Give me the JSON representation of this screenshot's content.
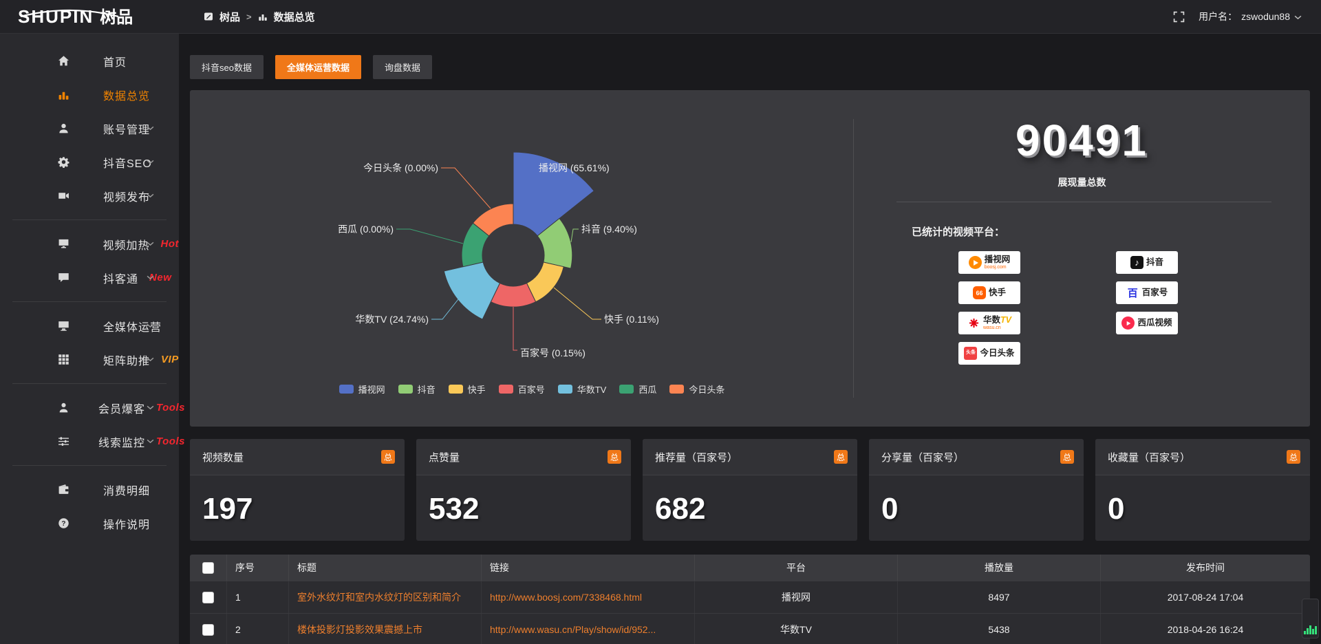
{
  "header": {
    "logo_text_en": "SHUPIN",
    "logo_text_cn": "树品",
    "breadcrumb": {
      "root": "树品",
      "separator": ">",
      "current": "数据总览"
    },
    "username_label": "用户名：",
    "username": "zswodun88"
  },
  "sidebar": {
    "items": [
      {
        "icon": "home-icon",
        "label": "首页"
      },
      {
        "icon": "bar-chart-icon",
        "label": "数据总览",
        "active": true
      },
      {
        "icon": "user-icon",
        "label": "账号管理",
        "chevron": true
      },
      {
        "icon": "gear-icon",
        "label": "抖音SEO",
        "chevron": true
      },
      {
        "icon": "video-publish-icon",
        "label": "视频发布",
        "chevron": true
      },
      {
        "divider": true
      },
      {
        "icon": "screen-icon",
        "label": "视频加热",
        "tag": "Hot",
        "tag_color": "#f4262e",
        "chevron": true
      },
      {
        "icon": "comment-icon",
        "label": "抖客通",
        "tag": "New",
        "tag_color": "#f4262e",
        "chevron": true
      },
      {
        "divider": true
      },
      {
        "icon": "monitor-icon",
        "label": "全媒体运营",
        "chevron": true
      },
      {
        "icon": "grid-icon",
        "label": "矩阵助推",
        "tag": "VIP",
        "tag_color": "#f59b22",
        "chevron": true
      },
      {
        "divider": true
      },
      {
        "icon": "member-icon",
        "label": "会员爆客",
        "tag": "Tools",
        "tag_color": "#f4262e",
        "chevron": true
      },
      {
        "icon": "sliders-icon",
        "label": "线索监控",
        "tag": "Tools",
        "tag_color": "#f4262e",
        "chevron": true
      },
      {
        "divider": true
      },
      {
        "icon": "wallet-icon",
        "label": "消费明细"
      },
      {
        "icon": "help-icon",
        "label": "操作说明"
      }
    ]
  },
  "tabs": [
    {
      "label": "抖音seo数据"
    },
    {
      "label": "全媒体运营数据",
      "active": true
    },
    {
      "label": "询盘数据"
    }
  ],
  "chart_data": {
    "type": "pie",
    "subtype": "rose",
    "donut": true,
    "legend_position": "bottom",
    "series": [
      {
        "name": "播视网",
        "value": 65.61,
        "label": "播视网 (65.61%)",
        "color": "#5470c6"
      },
      {
        "name": "抖音",
        "value": 9.4,
        "label": "抖音 (9.40%)",
        "color": "#91cc75"
      },
      {
        "name": "快手",
        "value": 0.11,
        "label": "快手 (0.11%)",
        "color": "#fac858"
      },
      {
        "name": "百家号",
        "value": 0.15,
        "label": "百家号 (0.15%)",
        "color": "#ee6666"
      },
      {
        "name": "华数TV",
        "value": 24.74,
        "label": "华数TV (24.74%)",
        "color": "#73c0de"
      },
      {
        "name": "西瓜",
        "value": 0.0,
        "label": "西瓜 (0.00%)",
        "color": "#3ba272"
      },
      {
        "name": "今日头条",
        "value": 0.0,
        "label": "今日头条 (0.00%)",
        "color": "#fc8452"
      }
    ]
  },
  "summary": {
    "total_value": "90491",
    "total_label": "展现量总数",
    "platforms_label": "已统计的视频平台：",
    "platforms_left": [
      {
        "logo": "boosj-logo",
        "name": "播视网",
        "sub": "boosj.com"
      },
      {
        "logo": "kuaishou-logo",
        "name": "快手"
      },
      {
        "logo": "wasu-logo",
        "name": "华数",
        "suffix": "TV",
        "sub": "wasu.cn"
      },
      {
        "logo": "toutiao-logo",
        "name": "今日头条"
      }
    ],
    "platforms_right": [
      {
        "logo": "douyin-logo",
        "name": "抖音"
      },
      {
        "logo": "baijiahao-logo",
        "name": "百家号"
      },
      {
        "logo": "xigua-logo",
        "name": "西瓜视频"
      }
    ]
  },
  "stat_cards": [
    {
      "title": "视频数量",
      "badge": "总",
      "value": "197"
    },
    {
      "title": "点赞量",
      "badge": "总",
      "value": "532"
    },
    {
      "title": "推荐量（百家号）",
      "badge": "总",
      "value": "682"
    },
    {
      "title": "分享量（百家号）",
      "badge": "总",
      "value": "0"
    },
    {
      "title": "收藏量（百家号）",
      "badge": "总",
      "value": "0"
    }
  ],
  "table": {
    "columns": [
      "序号",
      "标题",
      "链接",
      "平台",
      "播放量",
      "发布时间"
    ],
    "rows": [
      {
        "index": "1",
        "title": "室外水纹灯和室内水纹灯的区别和简介",
        "link": "http://www.boosj.com/7338468.html",
        "platform": "播视网",
        "views": "8497",
        "time": "2017-08-24 17:04"
      },
      {
        "index": "2",
        "title": "楼体投影灯投影效果震撼上市",
        "link": "http://www.wasu.cn/Play/show/id/952...",
        "platform": "华数TV",
        "views": "5438",
        "time": "2018-04-26 16:24"
      }
    ]
  },
  "colors": {
    "accent": "#f07818",
    "sidebar_active": "#f08300",
    "link": "#ee7f2d"
  }
}
